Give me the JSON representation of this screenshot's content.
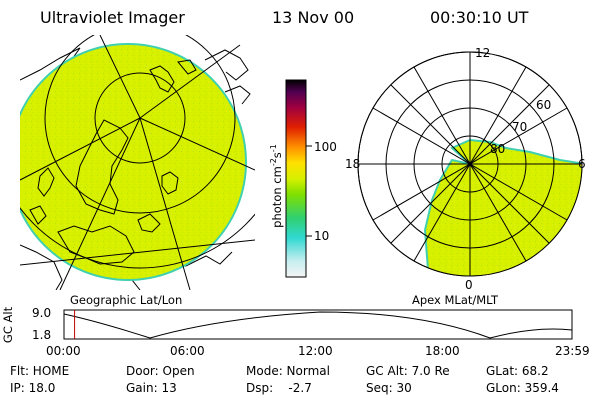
{
  "header": {
    "instrument": "Ultraviolet Imager",
    "date": "13 Nov 00",
    "time": "00:30:10 UT"
  },
  "geo_panel": {
    "caption": "Geographic Lat/Lon"
  },
  "mag_panel": {
    "caption": "Apex MLat/MLT",
    "mlt_labels": {
      "top": "12",
      "left": "18",
      "right": "6",
      "bottom": "0"
    },
    "mlat_labels": [
      "60",
      "70",
      "80"
    ]
  },
  "colorbar": {
    "unit_label": "photon cm",
    "unit_sup1": "-2",
    "unit_mid": "s",
    "unit_sup2": "-1",
    "tick_100": "100",
    "tick_10": "10"
  },
  "orbit": {
    "ylabel": "GC Alt",
    "y_top": "9.0",
    "y_bottom": "1.8",
    "x_ticks": [
      "00:00",
      "06:00",
      "12:00",
      "18:00",
      "23:59"
    ],
    "current_time_hours": 0.5
  },
  "footer": {
    "flt": "Flt: HOME",
    "door": "Door: Open",
    "mode": "Mode: Normal",
    "gc_alt": "GC Alt: 7.0 Re",
    "glat": "GLat:  68.2",
    "ip": "IP: 18.0",
    "gain": "Gain: 13",
    "dsp": "Dsp:    -2.7",
    "seq": "Seq: 30",
    "glon": "GLon: 359.4"
  },
  "colors": {
    "aurora_fill": "#d7f000",
    "aurora_edge": "#40d0b0",
    "orbit_marker": "#c00000"
  }
}
